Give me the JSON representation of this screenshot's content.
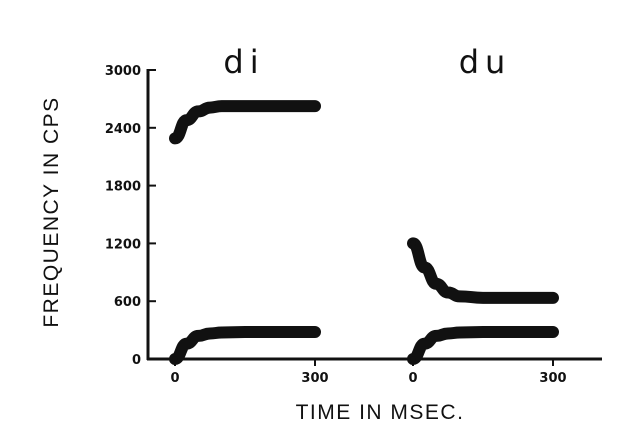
{
  "chart_data": {
    "type": "line",
    "xlabel": "TIME IN MSEC.",
    "ylabel": "FREQUENCY IN CPS",
    "ylim": [
      0,
      3000
    ],
    "y_ticks": [
      "0",
      "600",
      "1200",
      "1800",
      "2400",
      "3000"
    ],
    "y_tick_values": [
      0,
      600,
      1200,
      1800,
      2400,
      3000
    ],
    "grid": false,
    "panels": [
      {
        "label": "di",
        "x_ticks": [
          "0",
          "300"
        ],
        "x_tick_values": [
          0,
          300
        ],
        "series": [
          {
            "x": [
              0,
              25,
              50,
              75,
              100,
              150,
              200,
              250,
              300
            ],
            "y": [
              2290,
              2480,
              2570,
              2610,
              2625,
              2625,
              2625,
              2625,
              2625
            ]
          },
          {
            "x": [
              0,
              25,
              50,
              75,
              100,
              150,
              200,
              250,
              300
            ],
            "y": [
              0,
              160,
              240,
              265,
              275,
              280,
              280,
              280,
              280
            ]
          }
        ]
      },
      {
        "label": "du",
        "x_ticks": [
          "0",
          "300"
        ],
        "x_tick_values": [
          0,
          300
        ],
        "series": [
          {
            "x": [
              0,
              25,
              50,
              75,
              100,
              150,
              200,
              250,
              300
            ],
            "y": [
              1200,
              950,
              780,
              690,
              650,
              635,
              635,
              635,
              635
            ]
          },
          {
            "x": [
              0,
              25,
              50,
              75,
              100,
              150,
              200,
              250,
              300
            ],
            "y": [
              0,
              160,
              240,
              265,
              275,
              280,
              280,
              280,
              280
            ]
          }
        ]
      }
    ]
  }
}
